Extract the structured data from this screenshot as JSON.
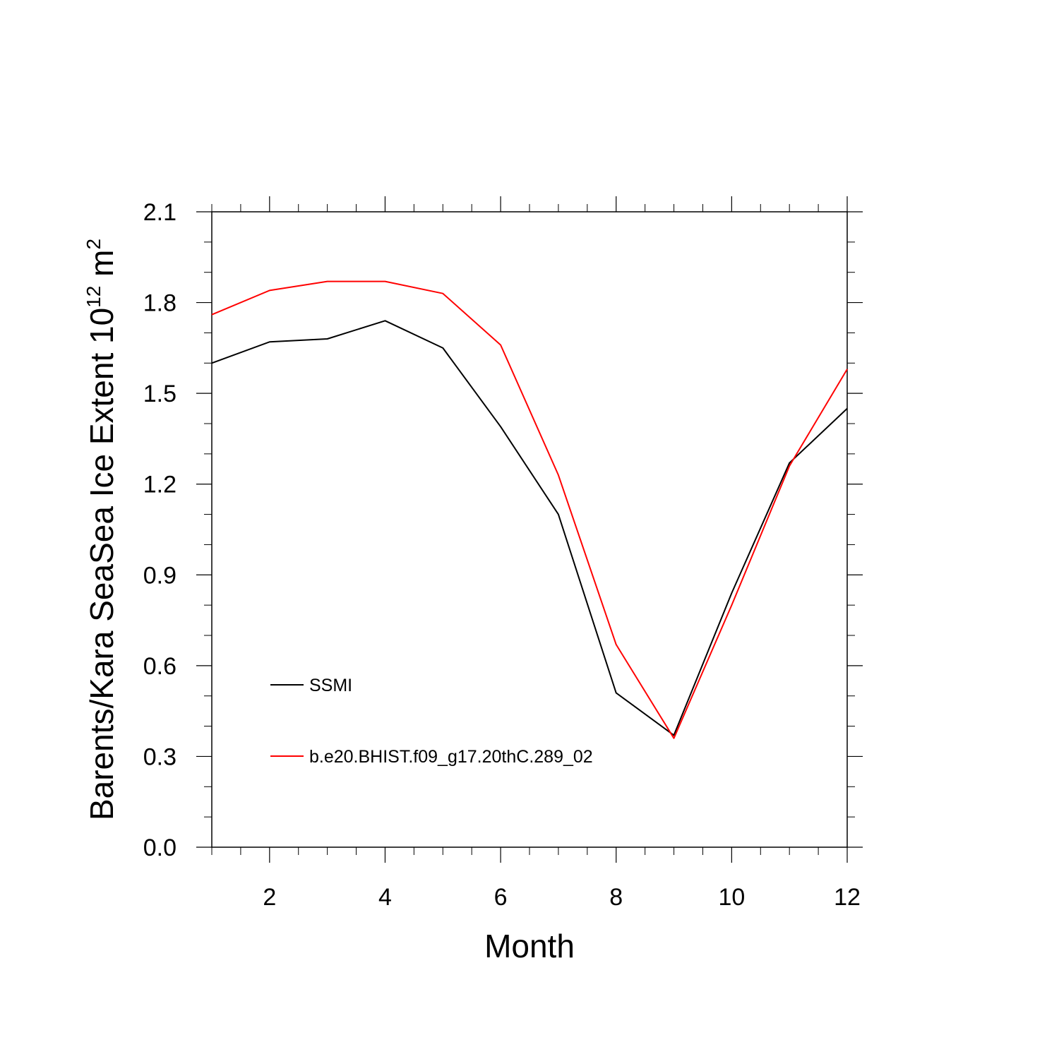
{
  "chart_data": {
    "type": "line",
    "xlabel": "Month",
    "ylabel": {
      "prefix": "Barents/Kara SeaSea Ice Extent 10",
      "exponent1": "12",
      "middle": " m",
      "exponent2": "2"
    },
    "xlim": [
      1,
      12
    ],
    "ylim": [
      0.0,
      2.1
    ],
    "xticks": [
      2,
      4,
      6,
      8,
      10,
      12
    ],
    "xticks_minor_step": 0.5,
    "yticks": [
      "0.0",
      "0.3",
      "0.6",
      "0.9",
      "1.2",
      "1.5",
      "1.8",
      "2.1"
    ],
    "yticks_minor_step": 0.1,
    "grid": false,
    "legend_position": "inside-lower-left",
    "x": [
      1,
      2,
      3,
      4,
      5,
      6,
      7,
      8,
      9,
      10,
      11,
      12
    ],
    "series": [
      {
        "name": "SSMI",
        "color": "#000000",
        "values": [
          1.6,
          1.67,
          1.68,
          1.74,
          1.65,
          1.39,
          1.1,
          0.51,
          0.37,
          0.84,
          1.27,
          1.45
        ]
      },
      {
        "name": "b.e20.BHIST.f09_g17.20thC.289_02",
        "color": "#ff0000",
        "values": [
          1.76,
          1.84,
          1.87,
          1.87,
          1.83,
          1.66,
          1.23,
          0.67,
          0.36,
          0.8,
          1.26,
          1.58
        ]
      }
    ]
  }
}
